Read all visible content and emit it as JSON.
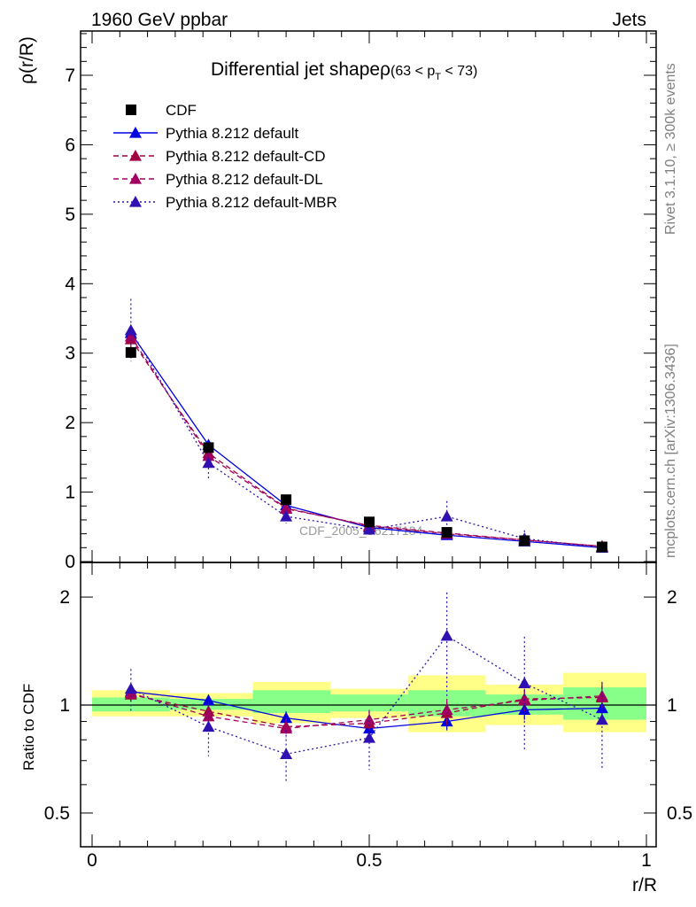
{
  "header": {
    "left_label": "1960 GeV ppbar",
    "right_label": "Jets"
  },
  "side_labels": {
    "rivet": "Rivet 3.1.10, ≥ 300k events",
    "mcplots": "mcplots.cern.ch [arXiv:1306.3436]"
  },
  "watermark": "CDF_2005_S6217184",
  "chart_data": [
    {
      "type": "line",
      "title": "Differential jet shape ρ (63 < p_T < 73)",
      "title_main": "Differential jet shapeρ",
      "title_range_pre": "(63 < p",
      "title_range_sub": "T",
      "title_range_post": " < 73)",
      "xlabel": "r/R",
      "ylabel": "ρ(r/R)",
      "xlim": [
        -0.02,
        1.02
      ],
      "ylim": [
        0,
        7.6
      ],
      "yticks": [
        0,
        1,
        2,
        3,
        4,
        5,
        6,
        7
      ],
      "ytick_labels": [
        "0",
        "1",
        "2",
        "3",
        "4",
        "5",
        "6",
        "7"
      ],
      "legend_position": "top-left",
      "x": [
        0.07,
        0.21,
        0.35,
        0.5,
        0.64,
        0.78,
        0.92
      ],
      "data": {
        "name": "CDF",
        "values": [
          3.01,
          1.64,
          0.89,
          0.57,
          0.42,
          0.3,
          0.21
        ]
      },
      "series": [
        {
          "name": "Pythia 8.212 default",
          "color": "#0000e0",
          "dash": "solid",
          "values": [
            3.29,
            1.68,
            0.81,
            0.49,
            0.38,
            0.29,
            0.2
          ],
          "errors": [
            0.12,
            0.06,
            0.03,
            0.02,
            0.02,
            0.02,
            0.01
          ]
        },
        {
          "name": "Pythia 8.212 default-CD",
          "color": "#a00040",
          "dash": "dashed",
          "values": [
            3.2,
            1.56,
            0.77,
            0.51,
            0.4,
            0.31,
            0.22
          ],
          "errors": [
            0.15,
            0.07,
            0.04,
            0.03,
            0.03,
            0.02,
            0.02
          ]
        },
        {
          "name": "Pythia 8.212 default-DL",
          "color": "#a00060",
          "dash": "dashed",
          "values": [
            3.24,
            1.52,
            0.76,
            0.52,
            0.41,
            0.31,
            0.22
          ],
          "errors": [
            0.16,
            0.08,
            0.04,
            0.03,
            0.03,
            0.02,
            0.02
          ]
        },
        {
          "name": "Pythia 8.212 default-MBR",
          "color": "#3010b0",
          "dash": "dotted",
          "values": [
            3.33,
            1.42,
            0.65,
            0.46,
            0.65,
            0.33,
            0.2
          ],
          "errors": [
            0.45,
            0.25,
            0.1,
            0.08,
            0.22,
            0.12,
            0.05
          ]
        }
      ]
    },
    {
      "type": "line",
      "title": "Ratio to CDF",
      "xlabel": "r/R",
      "ylabel": "Ratio to CDF",
      "xlim": [
        -0.02,
        1.02
      ],
      "ylim": [
        0.4,
        2.3
      ],
      "yscale": "log",
      "yticks": [
        0.5,
        1,
        2
      ],
      "ytick_labels": [
        "0.5",
        "1",
        "2"
      ],
      "xticks": [
        0,
        0.5,
        1
      ],
      "xtick_labels": [
        "0",
        "0.5",
        "1"
      ],
      "x": [
        0.07,
        0.21,
        0.35,
        0.5,
        0.64,
        0.78,
        0.92
      ],
      "x_edges": [
        0.0,
        0.14,
        0.29,
        0.43,
        0.57,
        0.71,
        0.85,
        1.0
      ],
      "bands": {
        "inner": [
          [
            0.96,
            1.05
          ],
          [
            0.97,
            1.04
          ],
          [
            0.95,
            1.1
          ],
          [
            0.96,
            1.07
          ],
          [
            0.93,
            1.1
          ],
          [
            0.94,
            1.07
          ],
          [
            0.91,
            1.12
          ]
        ],
        "outer": [
          [
            0.93,
            1.1
          ],
          [
            0.93,
            1.08
          ],
          [
            0.89,
            1.16
          ],
          [
            0.92,
            1.11
          ],
          [
            0.84,
            1.21
          ],
          [
            0.88,
            1.14
          ],
          [
            0.84,
            1.23
          ]
        ]
      },
      "series": [
        {
          "name": "Pythia 8.212 default",
          "values": [
            1.09,
            1.03,
            0.92,
            0.86,
            0.9,
            0.97,
            0.98
          ],
          "errors": [
            0.04,
            0.04,
            0.04,
            0.04,
            0.05,
            0.06,
            0.06
          ]
        },
        {
          "name": "Pythia 8.212 default-CD",
          "values": [
            1.07,
            0.96,
            0.87,
            0.89,
            0.95,
            1.04,
            1.05
          ],
          "errors": [
            0.05,
            0.05,
            0.05,
            0.05,
            0.07,
            0.07,
            0.09
          ]
        },
        {
          "name": "Pythia 8.212 default-DL",
          "values": [
            1.08,
            0.93,
            0.86,
            0.91,
            0.97,
            1.03,
            1.06
          ],
          "errors": [
            0.05,
            0.05,
            0.05,
            0.06,
            0.07,
            0.07,
            0.09
          ]
        },
        {
          "name": "Pythia 8.212 default-MBR",
          "values": [
            1.11,
            0.87,
            0.73,
            0.81,
            1.56,
            1.15,
            0.91
          ],
          "errors": [
            0.15,
            0.15,
            0.12,
            0.15,
            0.5,
            0.4,
            0.25
          ]
        }
      ]
    }
  ]
}
